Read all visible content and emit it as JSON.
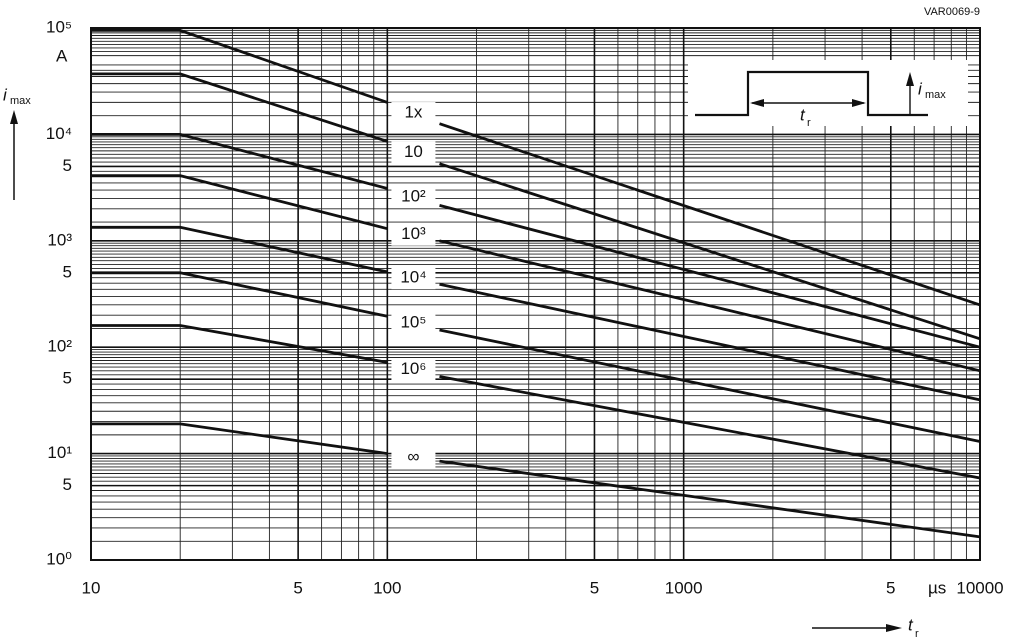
{
  "chart_data": {
    "type": "line",
    "code": "VAR0069-9",
    "y_label": {
      "main": "i",
      "sub": "max"
    },
    "y_unit": "A",
    "x_label": {
      "main": "t",
      "sub": "r"
    },
    "x_unit": "µs",
    "inset": {
      "width_label": {
        "main": "t",
        "sub": "r"
      },
      "height_label": {
        "main": "i",
        "sub": "max"
      }
    },
    "log_x": true,
    "log_y": true,
    "grid": true,
    "minor_grid": true,
    "color": "#111111",
    "xlim": [
      10,
      10000
    ],
    "ylim": [
      1,
      100000
    ],
    "xticks": [
      10,
      {
        "value": 50,
        "label": "5"
      },
      100,
      {
        "value": 500,
        "label": "5"
      },
      1000,
      {
        "value": 5000,
        "label": "5"
      },
      10000
    ],
    "yticks": [
      {
        "value": 1,
        "label": "10⁰"
      },
      {
        "value": 5,
        "label": "5"
      },
      {
        "value": 10,
        "label": "10¹"
      },
      {
        "value": 50,
        "label": "5"
      },
      {
        "value": 100,
        "label": "10²"
      },
      {
        "value": 500,
        "label": "5"
      },
      {
        "value": 1000,
        "label": "10³"
      },
      {
        "value": 5000,
        "label": "5"
      },
      {
        "value": 10000,
        "label": "10⁴"
      },
      {
        "value": 100000,
        "label": "10⁵"
      }
    ],
    "x": [
      10,
      20,
      100,
      125,
      150,
      10000
    ],
    "series": [
      {
        "name": "1x",
        "values": [
          95000,
          95000,
          20000,
          null,
          12600,
          250
        ]
      },
      {
        "name": "10",
        "values": [
          37000,
          37000,
          8600,
          null,
          5300,
          120
        ]
      },
      {
        "name": "10²",
        "values": [
          10000,
          10000,
          3100,
          null,
          2150,
          100
        ]
      },
      {
        "name": "10³",
        "values": [
          4100,
          4100,
          1300,
          null,
          1000,
          60
        ]
      },
      {
        "name": "10⁴",
        "values": [
          1340,
          1340,
          510,
          null,
          390,
          32
        ]
      },
      {
        "name": "10⁵",
        "values": [
          500,
          500,
          195,
          null,
          145,
          13
        ]
      },
      {
        "name": "10⁶",
        "values": [
          160,
          160,
          72,
          null,
          53,
          5.9
        ]
      },
      {
        "name": "∞",
        "values": [
          19,
          19,
          10,
          null,
          8.5,
          1.65
        ]
      }
    ]
  }
}
